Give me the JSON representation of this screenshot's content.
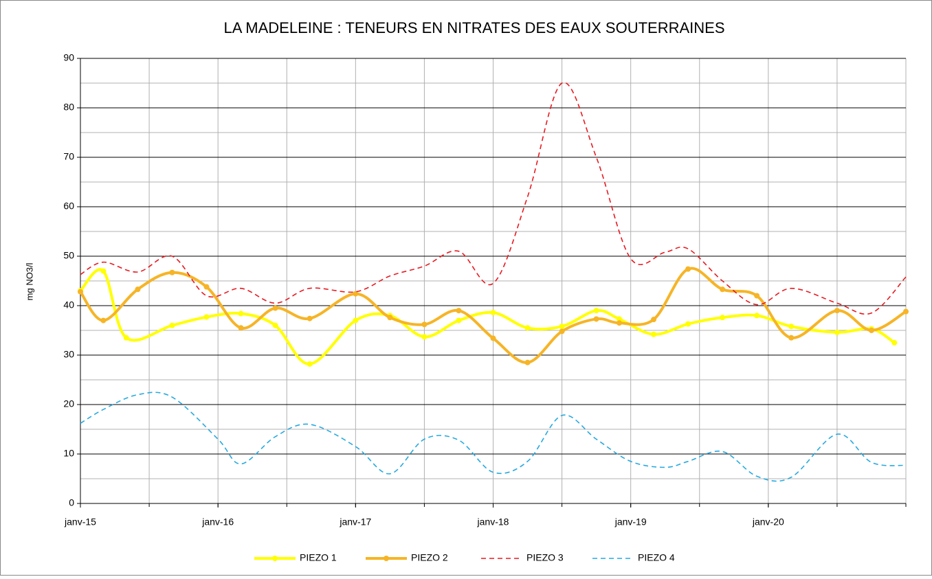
{
  "chart_data": {
    "type": "line",
    "title": "LA MADELEINE : TENEURS EN NITRATES DES EAUX SOUTERRAINES",
    "y_label": "mg NO3/l",
    "xlim": [
      "2015-01",
      "2021-01"
    ],
    "xticks": [
      {
        "value": "2015-01",
        "label": "janv-15"
      },
      {
        "value": "2016-01",
        "label": "janv-16"
      },
      {
        "value": "2017-01",
        "label": "janv-17"
      },
      {
        "value": "2018-01",
        "label": "janv-18"
      },
      {
        "value": "2019-01",
        "label": "janv-19"
      },
      {
        "value": "2020-01",
        "label": "janv-20"
      }
    ],
    "ylim": [
      0,
      90
    ],
    "yticks": [
      0,
      10,
      20,
      30,
      40,
      50,
      60,
      70,
      80,
      90
    ],
    "grid": true,
    "legend": "bottom",
    "series": [
      {
        "name": "PIEZO 1",
        "color": "#ffff00",
        "style": "solid-marker",
        "x": [
          "2015-01",
          "2015-03",
          "2015-05",
          "2015-09",
          "2015-12",
          "2016-03",
          "2016-06",
          "2016-09",
          "2017-01",
          "2017-04",
          "2017-07",
          "2017-10",
          "2018-01",
          "2018-04",
          "2018-07",
          "2018-10",
          "2018-12",
          "2019-03",
          "2019-06",
          "2019-09",
          "2019-12",
          "2020-03",
          "2020-07",
          "2020-10",
          "2020-12"
        ],
        "values": [
          43,
          47,
          33.5,
          36,
          37.7,
          38.4,
          36,
          28.2,
          37,
          38,
          33.7,
          37,
          38.6,
          35.5,
          35.8,
          39,
          37.3,
          34.2,
          36.3,
          37.6,
          38,
          35.8,
          34.6,
          35.3,
          32.5
        ]
      },
      {
        "name": "PIEZO 2",
        "color": "#f6b426",
        "style": "solid-marker",
        "x": [
          "2015-01",
          "2015-03",
          "2015-06",
          "2015-09",
          "2015-12",
          "2016-03",
          "2016-06",
          "2016-09",
          "2017-01",
          "2017-04",
          "2017-07",
          "2017-10",
          "2018-01",
          "2018-04",
          "2018-07",
          "2018-10",
          "2018-12",
          "2019-03",
          "2019-06",
          "2019-09",
          "2019-12",
          "2020-03",
          "2020-07",
          "2020-10",
          "2021-01"
        ],
        "values": [
          42.8,
          37,
          43.3,
          46.7,
          43.8,
          35.5,
          39.5,
          37.4,
          42.4,
          37.6,
          36.2,
          39,
          33.4,
          28.5,
          34.8,
          37.3,
          36.5,
          37.2,
          47.4,
          43.3,
          42,
          33.5,
          39,
          35,
          38.8
        ]
      },
      {
        "name": "PIEZO 3",
        "color": "#e8191f",
        "style": "dashed",
        "x": [
          "2015-01",
          "2015-03",
          "2015-06",
          "2015-09",
          "2015-12",
          "2016-03",
          "2016-06",
          "2016-09",
          "2017-01",
          "2017-04",
          "2017-07",
          "2017-10",
          "2018-01",
          "2018-04",
          "2018-07",
          "2018-10",
          "2019-01",
          "2019-04",
          "2019-06",
          "2019-09",
          "2019-12",
          "2020-03",
          "2020-07",
          "2020-10",
          "2021-01"
        ],
        "values": [
          46.3,
          48.8,
          46.8,
          50,
          42,
          43.5,
          40.5,
          43.5,
          42.8,
          46,
          48,
          51,
          44.5,
          62,
          85,
          70,
          49.5,
          50.8,
          51.5,
          45,
          40.2,
          43.5,
          40.5,
          38.5,
          45.8
        ]
      },
      {
        "name": "PIEZO 4",
        "color": "#25a9e0",
        "style": "dashed",
        "x": [
          "2015-01",
          "2015-03",
          "2015-06",
          "2015-09",
          "2016-01",
          "2016-03",
          "2016-06",
          "2016-09",
          "2017-01",
          "2017-04",
          "2017-07",
          "2017-10",
          "2018-01",
          "2018-04",
          "2018-07",
          "2018-10",
          "2019-01",
          "2019-04",
          "2019-06",
          "2019-09",
          "2019-12",
          "2020-03",
          "2020-07",
          "2020-10",
          "2021-01"
        ],
        "values": [
          16.2,
          19,
          22,
          21.5,
          13,
          8,
          13.5,
          16,
          11.5,
          6,
          13,
          12.8,
          6.3,
          8.5,
          17.8,
          13,
          8.5,
          7.3,
          8.5,
          10.5,
          5.5,
          5.3,
          14,
          8.3,
          7.7
        ]
      }
    ]
  }
}
